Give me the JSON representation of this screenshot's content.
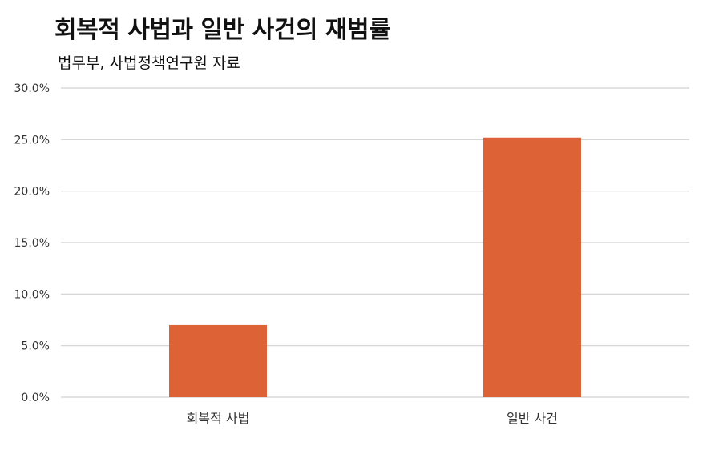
{
  "chart_data": {
    "type": "bar",
    "title": "회복적 사법과 일반 사건의 재범률",
    "subtitle": "법무부, 사법정책연구원 자료",
    "categories": [
      "회복적 사법",
      "일반 사건"
    ],
    "values": [
      7.0,
      25.2
    ],
    "ylim": [
      0,
      30
    ],
    "yticks": [
      0,
      5,
      10,
      15,
      20,
      25,
      30
    ],
    "ytick_labels": [
      "0.0%",
      "5.0%",
      "10.0%",
      "15.0%",
      "20.0%",
      "25.0%",
      "30.0%"
    ],
    "xlabel": "",
    "ylabel": "",
    "grid": true,
    "legend": "none",
    "bar_color": "#dd6236",
    "grid_color": "#d0d0d0"
  }
}
